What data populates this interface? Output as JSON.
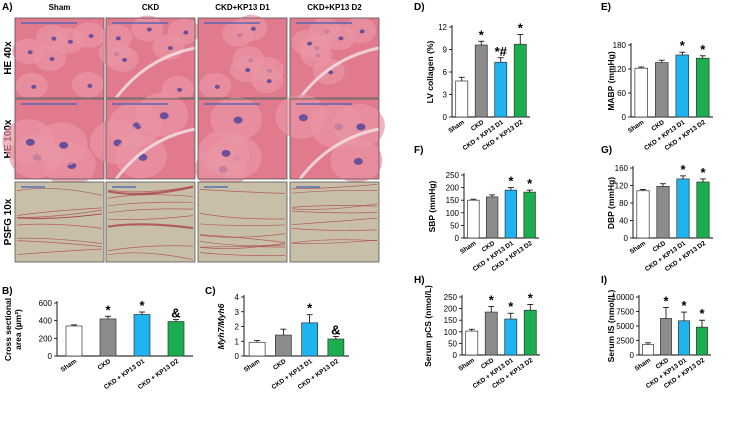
{
  "figure": {
    "micro": {
      "label": "A)",
      "columns": [
        "Sham",
        "CKD",
        "CKD+KP13 D1",
        "CKD+KP13 D2"
      ],
      "rows": [
        "HE 40x",
        "HE 100x",
        "PSFG 10x"
      ]
    }
  },
  "colors": {
    "Sham": "#ffffff",
    "CKD": "#8c8c8c",
    "CKD + KP13 D1": "#1fb4ef",
    "CKD + KP13 D2": "#1cad4e",
    "he_base": "#e07a8c",
    "he_nucleus": "#6a4f9a",
    "psfg_base": "#c8bfa8",
    "psfg_fiber": "#a8303c",
    "scale_bar": "#3f5fb8"
  },
  "chart_data": [
    {
      "id": "B",
      "label": "B)",
      "type": "bar",
      "categories": [
        "Sham",
        "CKD",
        "CKD + KP13 D1",
        "CKD + KP13 D2"
      ],
      "values": [
        340,
        420,
        470,
        390
      ],
      "errors": [
        12,
        30,
        28,
        22
      ],
      "markers": [
        "",
        "*",
        "*",
        "&"
      ],
      "ylabel_lines": [
        "Cross sectional",
        "area (µm²)"
      ],
      "ylim": [
        0,
        600
      ],
      "yticks": [
        "0",
        "200",
        "400",
        "600"
      ],
      "grid": false
    },
    {
      "id": "C",
      "label": "C)",
      "type": "bar",
      "categories": [
        "Sham",
        "CKD",
        "CKD + KP13 D1",
        "CKD + KP13 D2"
      ],
      "values": [
        0.93,
        1.42,
        2.25,
        1.15
      ],
      "errors": [
        0.12,
        0.4,
        0.55,
        0.18
      ],
      "markers": [
        "",
        "",
        "*",
        "&"
      ],
      "ylabel_lines": [
        "Myh7/Myh6"
      ],
      "ylim": [
        0,
        4
      ],
      "yticks": [
        "0",
        "1",
        "2",
        "3",
        "4"
      ],
      "grid": false
    },
    {
      "id": "D",
      "label": "D)",
      "type": "bar",
      "categories": [
        "Sham",
        "CKD",
        "CKD + KP13 D1",
        "CKD + KP13 D2"
      ],
      "values": [
        4.8,
        9.6,
        7.3,
        9.7
      ],
      "errors": [
        0.5,
        0.5,
        0.6,
        1.3
      ],
      "markers": [
        "",
        "*",
        "*#",
        "*"
      ],
      "ylabel_lines": [
        "LV collagen (%)"
      ],
      "ylim": [
        0,
        12
      ],
      "yticks": [
        "0",
        "3",
        "6",
        "9",
        "12"
      ],
      "grid": false
    },
    {
      "id": "E",
      "label": "E)",
      "type": "bar",
      "categories": [
        "Sham",
        "CKD",
        "CKD + KP13 D1",
        "CKD + KP13 D2"
      ],
      "values": [
        122,
        136,
        155,
        147
      ],
      "errors": [
        3,
        6,
        7,
        6
      ],
      "markers": [
        "",
        "",
        "*",
        "*"
      ],
      "ylabel_lines": [
        "MABP (mmHg)"
      ],
      "ylim": [
        0,
        180
      ],
      "yticks": [
        "0",
        "60",
        "120",
        "180"
      ],
      "grid": false
    },
    {
      "id": "F",
      "label": "F)",
      "type": "bar",
      "categories": [
        "Sham",
        "CKD",
        "CKD + KP13 D1",
        "CKD + KP13 D2"
      ],
      "values": [
        150,
        163,
        190,
        182
      ],
      "errors": [
        4,
        8,
        10,
        8
      ],
      "markers": [
        "",
        "",
        "*",
        "*"
      ],
      "ylabel_lines": [
        "SBP (mmHg)"
      ],
      "ylim": [
        0,
        250
      ],
      "yticks": [
        "0",
        "50",
        "100",
        "150",
        "200",
        "250"
      ],
      "grid": false
    },
    {
      "id": "G",
      "label": "G)",
      "type": "bar",
      "categories": [
        "Sham",
        "CKD",
        "CKD + KP13 D1",
        "CKD + KP13 D2"
      ],
      "values": [
        108,
        118,
        135,
        128
      ],
      "errors": [
        3,
        6,
        7,
        7
      ],
      "markers": [
        "",
        "",
        "*",
        "*"
      ],
      "ylabel_lines": [
        "DBP (mmHg)"
      ],
      "ylim": [
        0,
        160
      ],
      "yticks": [
        "0",
        "40",
        "80",
        "120",
        "160"
      ],
      "grid": false
    },
    {
      "id": "H",
      "label": "H)",
      "type": "bar",
      "categories": [
        "Sham",
        "CKD",
        "CKD + KP13 D1",
        "CKD + KP13 D2"
      ],
      "values": [
        103,
        185,
        155,
        193
      ],
      "errors": [
        8,
        24,
        25,
        25
      ],
      "markers": [
        "",
        "*",
        "*",
        "*"
      ],
      "ylabel_lines": [
        "Serum pCS (nmol/L)"
      ],
      "ylim": [
        0,
        250
      ],
      "yticks": [
        "0",
        "50",
        "100",
        "150",
        "200",
        "250"
      ],
      "grid": false
    },
    {
      "id": "I",
      "label": "I)",
      "type": "bar",
      "categories": [
        "Sham",
        "CKD",
        "CKD + KP13 D1",
        "CKD + KP13 D2"
      ],
      "values": [
        1800,
        6300,
        5900,
        4800
      ],
      "errors": [
        300,
        1900,
        1500,
        1200
      ],
      "markers": [
        "",
        "*",
        "*",
        "*"
      ],
      "ylabel_lines": [
        "Serum IS (nmol/L)"
      ],
      "ylim": [
        0,
        10000
      ],
      "yticks": [
        "0",
        "2500",
        "5000",
        "7500",
        "10000"
      ],
      "grid": false
    }
  ]
}
